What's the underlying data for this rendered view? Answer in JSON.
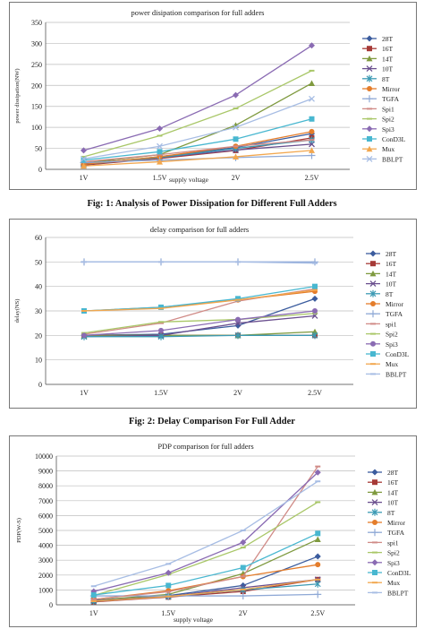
{
  "figures": [
    {
      "caption": "Fig: 1:   Analysis of Power Dissipation for Different Full Adders"
    },
    {
      "caption": "Fig: 2:  Delay Comparison For Full Adder"
    },
    {
      "caption": ""
    }
  ],
  "chart_data": [
    {
      "type": "line",
      "title": "power disipation comparison for full adders",
      "xlabel": "supply voltage",
      "ylabel": "power dissipation(NW)",
      "categories": [
        "1V",
        "1.5V",
        "2V",
        "2.5V"
      ],
      "ylim": [
        0,
        350
      ],
      "yticks": [
        0,
        50,
        100,
        150,
        200,
        250,
        300,
        350
      ],
      "grid": true,
      "legend": "right",
      "series": [
        {
          "name": "28T",
          "color": "#3b5c9e",
          "marker": "diamond",
          "values": [
            12,
            30,
            52,
            85
          ]
        },
        {
          "name": "16T",
          "color": "#a63a37",
          "marker": "square",
          "values": [
            10,
            26,
            45,
            75
          ]
        },
        {
          "name": "14T",
          "color": "#7f9a3f",
          "marker": "triangle",
          "values": [
            15,
            35,
            105,
            205
          ]
        },
        {
          "name": "10T",
          "color": "#6a4f8e",
          "marker": "x",
          "values": [
            14,
            28,
            46,
            60
          ]
        },
        {
          "name": "8T",
          "color": "#3c9ab4",
          "marker": "star",
          "values": [
            12,
            28,
            50,
            70
          ]
        },
        {
          "name": "Mirror",
          "color": "#e47d2b",
          "marker": "circle",
          "values": [
            12,
            30,
            55,
            90
          ]
        },
        {
          "name": "TGFA",
          "color": "#8fa9d6",
          "marker": "plus",
          "values": [
            16,
            22,
            28,
            33
          ]
        },
        {
          "name": "Spi1",
          "color": "#d08b87",
          "marker": "dash",
          "values": [
            18,
            35,
            55,
            70
          ]
        },
        {
          "name": "Spi2",
          "color": "#a9c768",
          "marker": "dash",
          "values": [
            30,
            80,
            145,
            235
          ]
        },
        {
          "name": "Spi3",
          "color": "#8a6bb3",
          "marker": "diamond",
          "values": [
            45,
            97,
            177,
            295
          ]
        },
        {
          "name": "ConD3L",
          "color": "#48b7d0",
          "marker": "square",
          "values": [
            22,
            42,
            72,
            120
          ]
        },
        {
          "name": "Mux",
          "color": "#f2a74e",
          "marker": "triangle",
          "values": [
            8,
            18,
            30,
            45
          ]
        },
        {
          "name": "BBLPT",
          "color": "#a7bde4",
          "marker": "x",
          "values": [
            25,
            55,
            100,
            168
          ]
        }
      ]
    },
    {
      "type": "line",
      "title": "delay comparison for full adders",
      "xlabel": "",
      "ylabel": "delay(NS)",
      "categories": [
        "1V",
        "1.5V",
        "2V",
        "2.5V"
      ],
      "ylim": [
        0,
        60
      ],
      "yticks": [
        0,
        10,
        20,
        30,
        40,
        50,
        60
      ],
      "grid": true,
      "legend": "right",
      "series": [
        {
          "name": "28T",
          "color": "#3b5c9e",
          "marker": "diamond",
          "values": [
            20,
            20.5,
            24,
            35
          ]
        },
        {
          "name": "16T",
          "color": "#a63a37",
          "marker": "square",
          "values": [
            20,
            20,
            20,
            20
          ]
        },
        {
          "name": "14T",
          "color": "#7f9a3f",
          "marker": "triangle",
          "values": [
            20,
            20,
            20,
            21.5
          ]
        },
        {
          "name": "10T",
          "color": "#6a4f8e",
          "marker": "x",
          "values": [
            19.5,
            20,
            25,
            28
          ]
        },
        {
          "name": "8T",
          "color": "#3c9ab4",
          "marker": "star",
          "values": [
            19.5,
            19.5,
            20,
            20
          ]
        },
        {
          "name": "Mirror",
          "color": "#e47d2b",
          "marker": "circle",
          "values": [
            30,
            31.5,
            34.5,
            38
          ]
        },
        {
          "name": "TGFA",
          "color": "#8fa9d6",
          "marker": "plus",
          "values": [
            50,
            50,
            50,
            50
          ]
        },
        {
          "name": "spi1",
          "color": "#d08b87",
          "marker": "dash",
          "values": [
            20.5,
            25,
            34,
            39
          ]
        },
        {
          "name": "Spi2",
          "color": "#a9c768",
          "marker": "dash",
          "values": [
            21,
            25.5,
            26.5,
            29
          ]
        },
        {
          "name": "Spi3",
          "color": "#8a6bb3",
          "marker": "circle",
          "values": [
            20,
            22,
            26.5,
            30
          ]
        },
        {
          "name": "ConD3L",
          "color": "#48b7d0",
          "marker": "square",
          "values": [
            30,
            31.5,
            35,
            40
          ]
        },
        {
          "name": "Mux",
          "color": "#f2a74e",
          "marker": "dash",
          "values": [
            30,
            31,
            34.5,
            38.5
          ]
        },
        {
          "name": "BBLPT",
          "color": "#a7bde4",
          "marker": "dash",
          "values": [
            50,
            50,
            50,
            49.5
          ]
        }
      ]
    },
    {
      "type": "line",
      "title": "PDP comparison for full adders",
      "xlabel": "supply voltage",
      "ylabel": "PDP(W-S)",
      "categories": [
        "1V",
        "1.5V",
        "2V",
        "2.5V"
      ],
      "ylim": [
        0,
        10000
      ],
      "yticks": [
        0,
        1000,
        2000,
        3000,
        4000,
        5000,
        6000,
        7000,
        8000,
        9000,
        10000
      ],
      "grid": true,
      "legend": "right",
      "series": [
        {
          "name": "28T",
          "color": "#3b5c9e",
          "marker": "diamond",
          "values": [
            250,
            620,
            1300,
            3250
          ]
        },
        {
          "name": "16T",
          "color": "#a63a37",
          "marker": "square",
          "values": [
            200,
            520,
            900,
            1700
          ]
        },
        {
          "name": "14T",
          "color": "#7f9a3f",
          "marker": "triangle",
          "values": [
            300,
            700,
            2100,
            4400
          ]
        },
        {
          "name": "10T",
          "color": "#6a4f8e",
          "marker": "x",
          "values": [
            280,
            560,
            1150,
            1700
          ]
        },
        {
          "name": "8T",
          "color": "#3c9ab4",
          "marker": "star",
          "values": [
            240,
            560,
            1000,
            1400
          ]
        },
        {
          "name": "Mirror",
          "color": "#e47d2b",
          "marker": "circle",
          "values": [
            360,
            950,
            1900,
            2700
          ]
        },
        {
          "name": "TGFA",
          "color": "#8fa9d6",
          "marker": "plus",
          "values": [
            600,
            600,
            600,
            700
          ]
        },
        {
          "name": "spi1",
          "color": "#d08b87",
          "marker": "dash",
          "values": [
            370,
            880,
            1900,
            9300
          ]
        },
        {
          "name": "Spi2",
          "color": "#a9c768",
          "marker": "dash",
          "values": [
            630,
            2040,
            3850,
            6900
          ]
        },
        {
          "name": "Spi3",
          "color": "#8a6bb3",
          "marker": "diamond",
          "values": [
            900,
            2150,
            4200,
            8900
          ]
        },
        {
          "name": "ConD3L",
          "color": "#48b7d0",
          "marker": "square",
          "values": [
            660,
            1300,
            2500,
            4800
          ]
        },
        {
          "name": "Mux",
          "color": "#f2a74e",
          "marker": "dash",
          "values": [
            240,
            560,
            1030,
            1700
          ]
        },
        {
          "name": "BBLPT",
          "color": "#a7bde4",
          "marker": "dash",
          "values": [
            1250,
            2750,
            5000,
            8300
          ]
        }
      ]
    }
  ]
}
